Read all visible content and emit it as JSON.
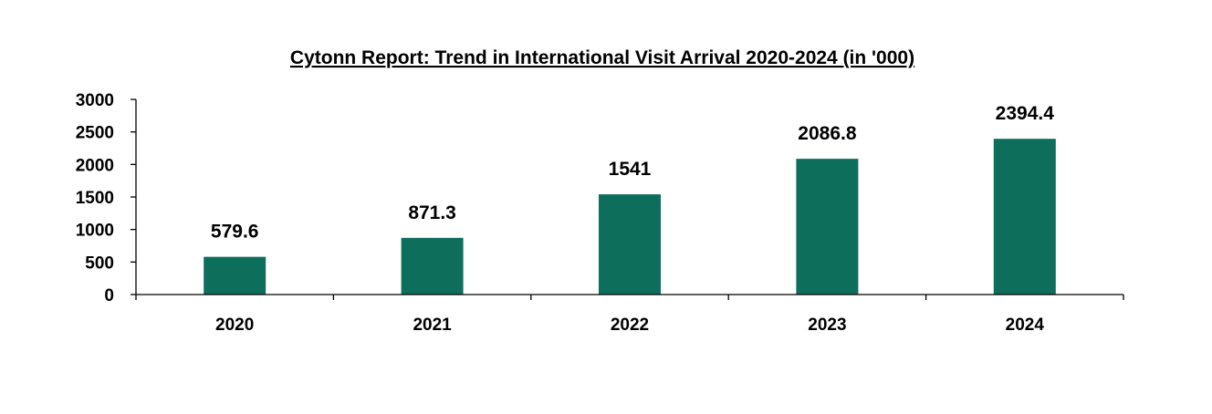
{
  "chart_data": {
    "type": "bar",
    "title": "Cytonn Report: Trend in International Visit Arrival 2020-2024 (in '000)",
    "xlabel": "",
    "ylabel": "",
    "categories": [
      "2020",
      "2021",
      "2022",
      "2023",
      "2024"
    ],
    "values": [
      579.6,
      871.3,
      1541,
      2086.8,
      2394.4
    ],
    "data_labels": [
      "579.6",
      "871.3",
      "1541",
      "2086.8",
      "2394.4"
    ],
    "ylim": [
      0,
      3000
    ],
    "yticks": [
      0,
      500,
      1000,
      1500,
      2000,
      2500,
      3000
    ],
    "grid": false,
    "legend": "none",
    "bar_color": "#0e6e5c"
  }
}
